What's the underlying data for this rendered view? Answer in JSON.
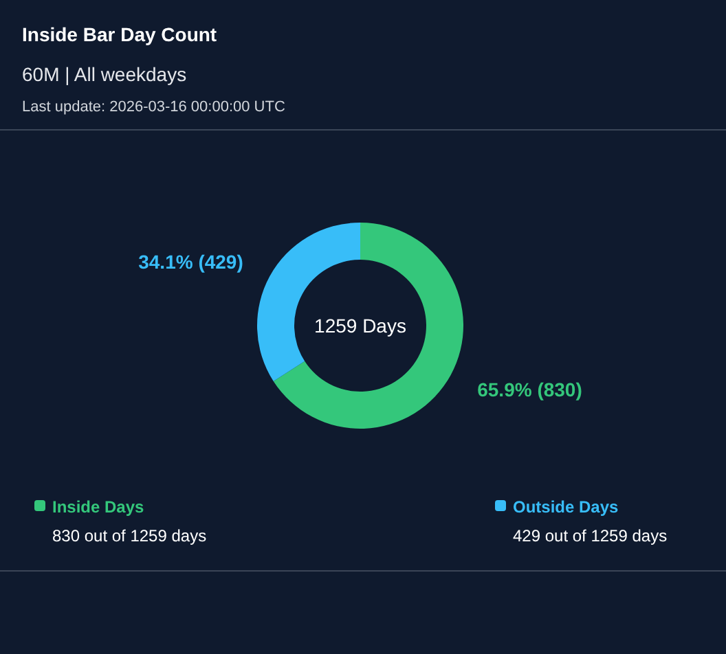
{
  "chart_data": {
    "type": "donut",
    "title": "Inside Bar Day Count",
    "subtitle": "60M | All weekdays",
    "categories": [
      "Inside Days",
      "Outside Days"
    ],
    "values": [
      830,
      429
    ],
    "colors": [
      "#34c77b",
      "#38bdf8"
    ],
    "value_labels": [
      "65.9% (830)",
      "34.1% (429)"
    ],
    "legend": "bottom",
    "annotations": [
      "Last update: 2026-03-16 00:00:00 UTC",
      "1259 Days",
      "830 out of 1259 days",
      "429 out of 1259 days"
    ]
  }
}
